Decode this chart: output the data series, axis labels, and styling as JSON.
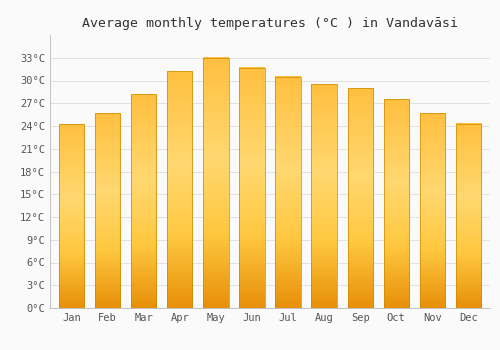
{
  "title": "Average monthly temperatures (°C ) in Vandavāsi",
  "months": [
    "Jan",
    "Feb",
    "Mar",
    "Apr",
    "May",
    "Jun",
    "Jul",
    "Aug",
    "Sep",
    "Oct",
    "Nov",
    "Dec"
  ],
  "values": [
    24.2,
    25.7,
    28.2,
    31.2,
    33.0,
    31.7,
    30.5,
    29.5,
    29.0,
    27.5,
    25.7,
    24.3
  ],
  "bar_color_light": "#FFD966",
  "bar_color_main": "#FFA500",
  "bar_color_dark": "#E08A00",
  "background_color": "#FAFAFA",
  "grid_color": "#DDDDDD",
  "ylim": [
    0,
    36
  ],
  "yticks": [
    0,
    3,
    6,
    9,
    12,
    15,
    18,
    21,
    24,
    27,
    30,
    33
  ],
  "title_fontsize": 9.5,
  "tick_fontsize": 7.5,
  "ylabel_suffix": "°C",
  "title_color": "#333333",
  "tick_color": "#555555"
}
